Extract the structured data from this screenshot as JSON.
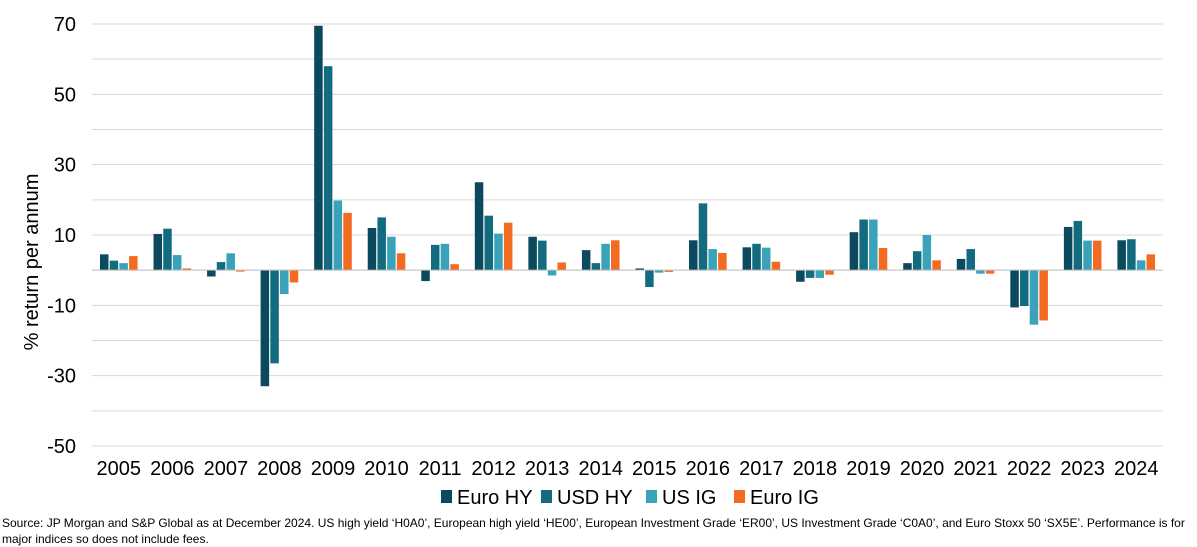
{
  "chart_data": {
    "type": "bar",
    "ylabel": "% return per annum",
    "xlabel": "",
    "ylim": [
      -50,
      70
    ],
    "yticks": [
      -50,
      -30,
      -10,
      10,
      30,
      50,
      70
    ],
    "grid": true,
    "legend_position": "bottom",
    "categories": [
      "2005",
      "2006",
      "2007",
      "2008",
      "2009",
      "2010",
      "2011",
      "2012",
      "2013",
      "2014",
      "2015",
      "2016",
      "2017",
      "2018",
      "2019",
      "2020",
      "2021",
      "2022",
      "2023",
      "2024"
    ],
    "series": [
      {
        "name": "Euro HY",
        "color": "#0b4a5e",
        "values": [
          4.5,
          10.3,
          -1.8,
          -33.0,
          69.5,
          12.0,
          -3.1,
          25.0,
          9.5,
          5.7,
          0.5,
          8.5,
          6.5,
          -3.3,
          10.8,
          2.0,
          3.2,
          -10.6,
          12.3,
          8.5
        ]
      },
      {
        "name": "USD HY",
        "color": "#136b7f",
        "values": [
          2.7,
          11.8,
          2.3,
          -26.5,
          58.0,
          15.0,
          7.2,
          15.5,
          8.4,
          2.0,
          -4.8,
          19.0,
          7.5,
          -2.2,
          14.4,
          5.4,
          6.0,
          -10.2,
          14.0,
          8.8
        ]
      },
      {
        "name": "US IG",
        "color": "#3aa3ba",
        "values": [
          2.0,
          4.3,
          4.8,
          -6.8,
          19.8,
          9.5,
          7.5,
          10.4,
          -1.5,
          7.5,
          -0.7,
          6.0,
          6.4,
          -2.2,
          14.4,
          10.0,
          -1.0,
          -15.5,
          8.4,
          2.8
        ]
      },
      {
        "name": "Euro IG",
        "color": "#f26b21",
        "values": [
          4.0,
          0.5,
          -0.4,
          -3.5,
          16.3,
          4.8,
          1.7,
          13.5,
          2.2,
          8.5,
          -0.5,
          4.9,
          2.4,
          -1.3,
          6.3,
          2.8,
          -1.0,
          -14.3,
          8.4,
          4.5
        ]
      }
    ]
  },
  "footer": {
    "source": "Source: JP Morgan and S&P Global as at December 2024. US high yield ‘H0A0’, European high yield ‘HE00’, European Investment Grade ‘ER00’, US Investment Grade ‘C0A0’, and Euro Stoxx 50 ‘SX5E’. Performance is for major indices so does not include fees."
  }
}
